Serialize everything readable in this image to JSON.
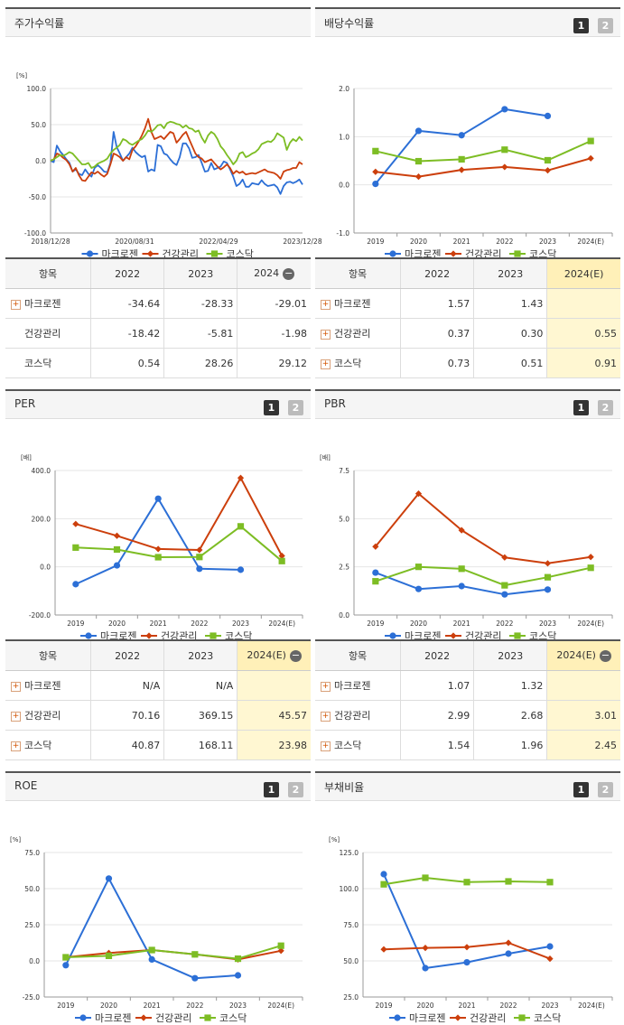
{
  "legend": {
    "s1": "마크로젠",
    "s2": "건강관리",
    "s3": "코스닥"
  },
  "colors": {
    "s1": "#2c6fd6",
    "s2": "#cc3f0c",
    "s3": "#7dbd24"
  },
  "panels": [
    {
      "title": "주가수익률",
      "buttons": []
    },
    {
      "title": "배당수익률",
      "buttons": [
        "1",
        "2"
      ]
    },
    {
      "title": "PER",
      "buttons": [
        "1",
        "2"
      ]
    },
    {
      "title": "PBR",
      "buttons": [
        "1",
        "2"
      ]
    },
    {
      "title": "ROE",
      "buttons": [
        "1",
        "2"
      ]
    },
    {
      "title": "부채비율",
      "buttons": [
        "1",
        "2"
      ]
    }
  ],
  "chart_data": [
    {
      "type": "line",
      "id": "stock",
      "unit": "[%]",
      "ylim": [
        -100,
        100
      ],
      "yticks": [
        "100.0",
        "50.0",
        "0.0",
        "-50.0",
        "-100.0"
      ],
      "xticks": [
        "2018/12/28",
        "2020/08/31",
        "2022/04/29",
        "2023/12/28"
      ],
      "series": [
        {
          "name": "마크로젠",
          "values": [
            0,
            -2,
            21,
            13,
            8,
            2,
            -3,
            -15,
            -12,
            -18,
            -20,
            -12,
            -18,
            -22,
            -10,
            -6,
            -10,
            -15,
            -16,
            -3,
            40,
            19,
            10,
            0,
            5,
            10,
            18,
            12,
            8,
            5,
            7,
            -15,
            -12,
            -14,
            22,
            20,
            10,
            8,
            2,
            -3,
            -6,
            5,
            24,
            24,
            17,
            4,
            5,
            8,
            -3,
            -15,
            -14,
            -3,
            -12,
            -10,
            -8,
            -1,
            -3,
            -12,
            -22,
            -35,
            -32,
            -26,
            -36,
            -36,
            -31,
            -32,
            -33,
            -27,
            -32,
            -35,
            -34,
            -33,
            -37,
            -46,
            -35,
            -30,
            -29,
            -31,
            -29,
            -26,
            -33
          ]
        },
        {
          "name": "건강관리",
          "values": [
            0,
            2,
            10,
            8,
            4,
            1,
            -5,
            -15,
            -10,
            -20,
            -27,
            -28,
            -22,
            -16,
            -18,
            -15,
            -19,
            -22,
            -18,
            -5,
            10,
            8,
            5,
            0,
            5,
            2,
            15,
            20,
            27,
            35,
            45,
            58,
            40,
            30,
            32,
            34,
            30,
            35,
            40,
            38,
            25,
            30,
            36,
            40,
            30,
            20,
            10,
            5,
            3,
            -2,
            0,
            2,
            -3,
            -8,
            -12,
            -9,
            -5,
            -10,
            -18,
            -14,
            -17,
            -15,
            -19,
            -18,
            -17,
            -18,
            -16,
            -14,
            -12,
            -15,
            -16,
            -17,
            -20,
            -25,
            -15,
            -13,
            -12,
            -10,
            -10,
            -2,
            -5
          ]
        },
        {
          "name": "코스닥",
          "values": [
            0,
            2,
            5,
            8,
            7,
            9,
            12,
            10,
            5,
            0,
            -5,
            -5,
            -3,
            -10,
            -8,
            -4,
            -2,
            0,
            3,
            10,
            15,
            18,
            22,
            30,
            28,
            24,
            22,
            25,
            28,
            30,
            35,
            42,
            40,
            44,
            49,
            50,
            45,
            52,
            54,
            53,
            51,
            50,
            46,
            49,
            45,
            44,
            40,
            42,
            32,
            25,
            35,
            40,
            37,
            30,
            20,
            15,
            8,
            2,
            -5,
            0,
            10,
            12,
            5,
            7,
            10,
            12,
            16,
            23,
            25,
            27,
            26,
            30,
            38,
            35,
            32,
            15,
            25,
            30,
            27,
            33,
            28
          ]
        }
      ]
    },
    {
      "type": "line",
      "id": "dividend",
      "ylim": [
        -1,
        2
      ],
      "yticks": [
        "2.0",
        "1.0",
        "0.0",
        "-1.0"
      ],
      "categories": [
        "2019",
        "2020",
        "2021",
        "2022",
        "2023",
        "2024(E)"
      ],
      "series": [
        {
          "name": "마크로젠",
          "values": [
            0.02,
            1.12,
            1.03,
            1.57,
            1.43,
            null
          ]
        },
        {
          "name": "건강관리",
          "values": [
            0.27,
            0.17,
            0.31,
            0.37,
            0.3,
            0.55
          ]
        },
        {
          "name": "코스닥",
          "values": [
            0.7,
            0.49,
            0.53,
            0.73,
            0.51,
            0.91
          ]
        }
      ]
    },
    {
      "type": "line",
      "id": "per",
      "unit": "[배]",
      "ylim": [
        -200,
        400
      ],
      "yticks": [
        "400.0",
        "200.0",
        "0.0",
        "-200.0"
      ],
      "categories": [
        "2019",
        "2020",
        "2021",
        "2022",
        "2023",
        "2024(E)"
      ],
      "series": [
        {
          "name": "마크로젠",
          "values": [
            -72,
            6,
            283,
            -8,
            -12,
            null
          ]
        },
        {
          "name": "건강관리",
          "values": [
            178,
            129,
            74,
            70.16,
            369.15,
            45.57
          ]
        },
        {
          "name": "코스닥",
          "values": [
            80,
            72,
            40,
            40.87,
            168.11,
            23.98
          ]
        }
      ]
    },
    {
      "type": "line",
      "id": "pbr",
      "unit": "[배]",
      "ylim": [
        0,
        7.5
      ],
      "yticks": [
        "7.5",
        "5.0",
        "2.5",
        "0.0"
      ],
      "categories": [
        "2019",
        "2020",
        "2021",
        "2022",
        "2023",
        "2024(E)"
      ],
      "series": [
        {
          "name": "마크로젠",
          "values": [
            2.2,
            1.35,
            1.5,
            1.07,
            1.32,
            null
          ]
        },
        {
          "name": "건강관리",
          "values": [
            3.55,
            6.3,
            4.4,
            2.99,
            2.68,
            3.01
          ]
        },
        {
          "name": "코스닥",
          "values": [
            1.75,
            2.5,
            2.4,
            1.54,
            1.96,
            2.45
          ]
        }
      ]
    },
    {
      "type": "line",
      "id": "roe",
      "unit": "[%]",
      "ylim": [
        -25,
        75
      ],
      "yticks": [
        "75.0",
        "50.0",
        "25.0",
        "0.0",
        "-25.0"
      ],
      "categories": [
        "2019",
        "2020",
        "2021",
        "2022",
        "2023",
        "2024(E)"
      ],
      "series": [
        {
          "name": "마크로젠",
          "values": [
            -3,
            57,
            1,
            -12,
            -10,
            null
          ]
        },
        {
          "name": "건강관리",
          "values": [
            2.5,
            5.5,
            7.5,
            4.5,
            1.0,
            7.0
          ]
        },
        {
          "name": "코스닥",
          "values": [
            2.5,
            3.5,
            7.5,
            4.5,
            1.5,
            10.5
          ]
        }
      ]
    },
    {
      "type": "line",
      "id": "debt",
      "unit": "[%]",
      "ylim": [
        25,
        125
      ],
      "yticks": [
        "125.0",
        "100.0",
        "75.0",
        "50.0",
        "25.0"
      ],
      "categories": [
        "2019",
        "2020",
        "2021",
        "2022",
        "2023",
        "2024(E)"
      ],
      "series": [
        {
          "name": "마크로젠",
          "values": [
            110,
            45,
            49,
            55,
            60,
            null
          ]
        },
        {
          "name": "건강관리",
          "values": [
            58,
            59,
            59.5,
            62.5,
            51.5,
            null
          ]
        },
        {
          "name": "코스닥",
          "values": [
            103,
            107.5,
            104.5,
            105,
            104.5,
            null
          ]
        }
      ]
    }
  ],
  "tables": [
    {
      "id": "stock",
      "header": [
        "항목",
        "2022",
        "2023",
        "2024"
      ],
      "minus": true,
      "rows": [
        {
          "name": "마크로젠",
          "plus": true,
          "cells": [
            "-34.64",
            "-28.33",
            "-29.01"
          ],
          "hl": false
        },
        {
          "name": "건강관리",
          "plus": false,
          "cells": [
            "-18.42",
            "-5.81",
            "-1.98"
          ],
          "hl": false
        },
        {
          "name": "코스닥",
          "plus": false,
          "cells": [
            "0.54",
            "28.26",
            "29.12"
          ],
          "hl": false
        }
      ]
    },
    {
      "id": "dividend",
      "header": [
        "항목",
        "2022",
        "2023",
        "2024(E)"
      ],
      "minus": false,
      "rows": [
        {
          "name": "마크로젠",
          "plus": true,
          "cells": [
            "1.57",
            "1.43",
            ""
          ],
          "hl": true
        },
        {
          "name": "건강관리",
          "plus": true,
          "cells": [
            "0.37",
            "0.30",
            "0.55"
          ],
          "hl": true
        },
        {
          "name": "코스닥",
          "plus": true,
          "cells": [
            "0.73",
            "0.51",
            "0.91"
          ],
          "hl": true
        }
      ]
    },
    {
      "id": "per",
      "header": [
        "항목",
        "2022",
        "2023",
        "2024(E)"
      ],
      "minus": true,
      "rows": [
        {
          "name": "마크로젠",
          "plus": true,
          "cells": [
            "N/A",
            "N/A",
            ""
          ],
          "hl": true
        },
        {
          "name": "건강관리",
          "plus": true,
          "cells": [
            "70.16",
            "369.15",
            "45.57"
          ],
          "hl": true
        },
        {
          "name": "코스닥",
          "plus": true,
          "cells": [
            "40.87",
            "168.11",
            "23.98"
          ],
          "hl": true
        }
      ]
    },
    {
      "id": "pbr",
      "header": [
        "항목",
        "2022",
        "2023",
        "2024(E)"
      ],
      "minus": true,
      "rows": [
        {
          "name": "마크로젠",
          "plus": true,
          "cells": [
            "1.07",
            "1.32",
            ""
          ],
          "hl": true
        },
        {
          "name": "건강관리",
          "plus": true,
          "cells": [
            "2.99",
            "2.68",
            "3.01"
          ],
          "hl": true
        },
        {
          "name": "코스닥",
          "plus": true,
          "cells": [
            "1.54",
            "1.96",
            "2.45"
          ],
          "hl": true
        }
      ]
    }
  ]
}
